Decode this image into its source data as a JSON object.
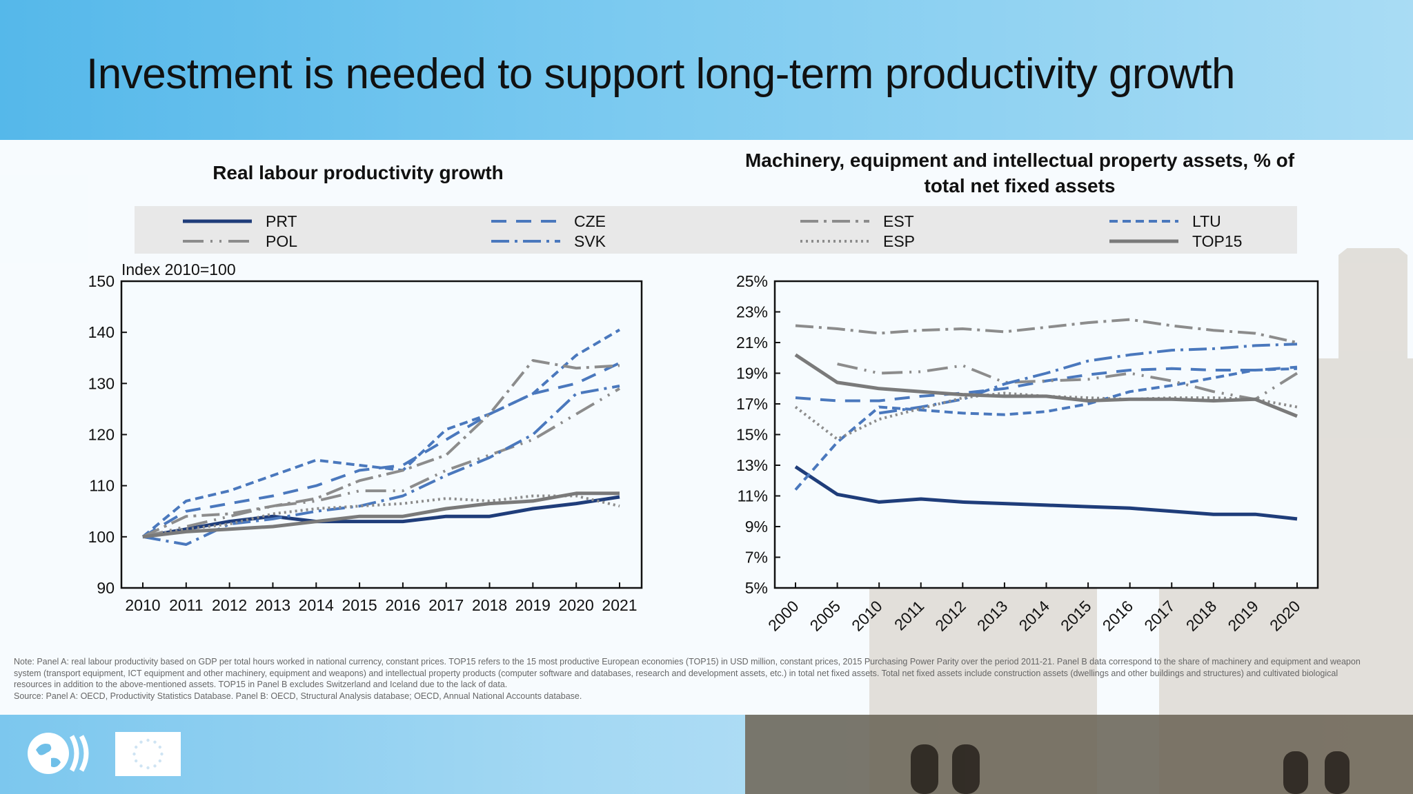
{
  "title": "Investment is needed to support long-term productivity growth",
  "legend": [
    {
      "name": "PRT",
      "color": "#1f3d7a",
      "dash": "",
      "width": 5
    },
    {
      "name": "CZE",
      "color": "#4a78bd",
      "dash": "22,14",
      "width": 4
    },
    {
      "name": "EST",
      "color": "#8c8c8c",
      "dash": "26,8,4,8",
      "width": 4
    },
    {
      "name": "LTU",
      "color": "#4a78bd",
      "dash": "12,7",
      "width": 4
    },
    {
      "name": "POL",
      "color": "#8c8c8c",
      "dash": "30,10,3,10,3,10",
      "width": 4
    },
    {
      "name": "SVK",
      "color": "#4a78bd",
      "dash": "26,8,4,8",
      "width": 4
    },
    {
      "name": "ESP",
      "color": "#8c8c8c",
      "dash": "3,5",
      "width": 4
    },
    {
      "name": "TOP15",
      "color": "#7a7a7a",
      "dash": "",
      "width": 5
    }
  ],
  "chart_data": [
    {
      "type": "line",
      "title": "Real labour productivity growth",
      "ylabel": "Index 2010=100",
      "x": [
        "2010",
        "2011",
        "2012",
        "2013",
        "2014",
        "2015",
        "2016",
        "2017",
        "2018",
        "2019",
        "2020",
        "2021"
      ],
      "ylim": [
        90,
        150
      ],
      "yticks": [
        "90",
        "100",
        "110",
        "120",
        "130",
        "140",
        "150"
      ],
      "series": [
        {
          "name": "PRT",
          "values": [
            100,
            101.5,
            103,
            104,
            103,
            103,
            103,
            104,
            104,
            105.5,
            106.5,
            107.8
          ]
        },
        {
          "name": "CZE",
          "values": [
            100,
            105,
            106.5,
            108,
            110,
            113,
            114,
            119,
            124,
            128,
            130,
            134
          ]
        },
        {
          "name": "LTU",
          "values": [
            100,
            107,
            109,
            112,
            115,
            114,
            113,
            121,
            124,
            128,
            135.5,
            140.5
          ]
        },
        {
          "name": "POL",
          "values": [
            100,
            102,
            104,
            106,
            107,
            109,
            109,
            113,
            116,
            119,
            124,
            129
          ]
        },
        {
          "name": "SVK",
          "values": [
            100,
            98.5,
            102.5,
            103.5,
            105,
            106,
            108,
            112,
            115.5,
            120,
            128,
            129.5
          ]
        },
        {
          "name": "EST",
          "values": [
            100,
            104,
            104.5,
            106,
            107.5,
            111,
            113,
            116,
            124,
            134.5,
            133,
            133.5
          ]
        },
        {
          "name": "ESP",
          "values": [
            100,
            101.5,
            102.5,
            104.5,
            105.5,
            106,
            106.5,
            107.5,
            107,
            108,
            108,
            106
          ]
        },
        {
          "name": "TOP15",
          "values": [
            100,
            101,
            101.5,
            102,
            103,
            104,
            104,
            105.5,
            106.5,
            107,
            108.5,
            108.5
          ]
        }
      ]
    },
    {
      "type": "line",
      "title": "Machinery, equipment and intellectual property assets, % of total net fixed assets",
      "x": [
        "2000",
        "2005",
        "2010",
        "2011",
        "2012",
        "2013",
        "2014",
        "2015",
        "2016",
        "2017",
        "2018",
        "2019",
        "2020"
      ],
      "ylim": [
        5,
        25
      ],
      "yticks": [
        "5%",
        "7%",
        "9%",
        "11%",
        "13%",
        "15%",
        "17%",
        "19%",
        "21%",
        "23%",
        "25%"
      ],
      "series": [
        {
          "name": "PRT",
          "values": [
            12.9,
            11.1,
            10.6,
            10.8,
            10.6,
            10.5,
            10.4,
            10.3,
            10.2,
            10.0,
            9.8,
            9.8,
            9.5
          ]
        },
        {
          "name": "CZE",
          "values": [
            17.4,
            17.2,
            17.2,
            17.5,
            17.7,
            18.0,
            18.5,
            18.9,
            19.2,
            19.3,
            19.2,
            19.2,
            19.4
          ]
        },
        {
          "name": "LTU",
          "values": [
            11.4,
            14.5,
            16.8,
            16.6,
            16.4,
            16.3,
            16.5,
            17.0,
            17.8,
            18.2,
            18.7,
            19.2,
            19.3
          ]
        },
        {
          "name": "POL",
          "values": [
            null,
            19.6,
            19.0,
            19.1,
            19.5,
            18.4,
            18.5,
            18.6,
            19.0,
            18.5,
            17.8,
            17.3,
            19.0
          ]
        },
        {
          "name": "SVK",
          "values": [
            null,
            null,
            16.4,
            16.8,
            17.3,
            18.3,
            19.0,
            19.8,
            20.2,
            20.5,
            20.6,
            20.8,
            20.9
          ]
        },
        {
          "name": "EST",
          "values": [
            22.1,
            21.9,
            21.6,
            21.8,
            21.9,
            21.7,
            22.0,
            22.3,
            22.5,
            22.1,
            21.8,
            21.6,
            21.0
          ]
        },
        {
          "name": "ESP",
          "values": [
            16.8,
            14.7,
            16.0,
            16.7,
            17.4,
            17.7,
            17.5,
            17.4,
            17.3,
            17.4,
            17.4,
            17.3,
            16.8
          ]
        },
        {
          "name": "TOP15",
          "values": [
            20.2,
            18.4,
            18.0,
            17.8,
            17.6,
            17.5,
            17.5,
            17.2,
            17.3,
            17.3,
            17.2,
            17.3,
            16.2
          ]
        }
      ]
    }
  ],
  "notes": [
    "Note: Panel A: real labour productivity based on GDP per total hours worked in national currency, constant prices. TOP15 refers to the 15 most productive European economies (TOP15) in USD million, constant prices, 2015 Purchasing Power Parity over the period 2011-21. Panel B data correspond to the share of machinery and equipment and weapon",
    "system (transport equipment, ICT equipment and other machinery, equipment and weapons) and intellectual property products (computer software and databases, research and development assets, etc.) in total net fixed assets. Total net fixed assets include construction assets (dwellings and other buildings and structures) and cultivated biological",
    "resources in addition to the above-mentioned assets. TOP15 in Panel B excludes Switzerland and Iceland due to the lack of data.",
    "Source: Panel A: OECD, Productivity Statistics Database. Panel B: OECD, Structural Analysis database; OECD, Annual National Accounts database."
  ]
}
